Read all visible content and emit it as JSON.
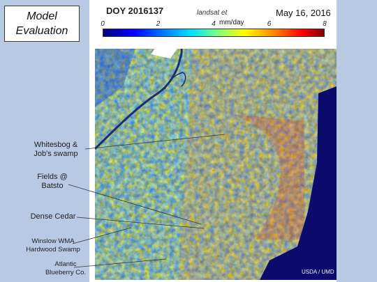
{
  "title": {
    "line1": "Model",
    "line2": "Evaluation"
  },
  "header": {
    "doy": "DOY 2016137",
    "layer_name": "landsat et",
    "date": "May 16, 2016"
  },
  "colorbar": {
    "ticks": [
      "0",
      "2",
      "4",
      "6",
      "8"
    ],
    "unit": "mm/day",
    "min": 0,
    "max": 8
  },
  "map": {
    "credit": "USDA / UMD"
  },
  "annotations": {
    "whitesbog_line1": "Whitesbog &",
    "whitesbog_line2": "Job's swamp",
    "fields_line1": "Fields @",
    "fields_line2": "Batsto",
    "dense_cedar": "Dense Cedar",
    "winslow_line1": "Winslow WMA",
    "winslow_line2": "Hardwood Swamp",
    "atlantic_line1": "Atlantic",
    "atlantic_line2": "Blueberry Co."
  },
  "colors": {
    "background": "#b8c9e3",
    "ocean": "#0b0b6e"
  }
}
